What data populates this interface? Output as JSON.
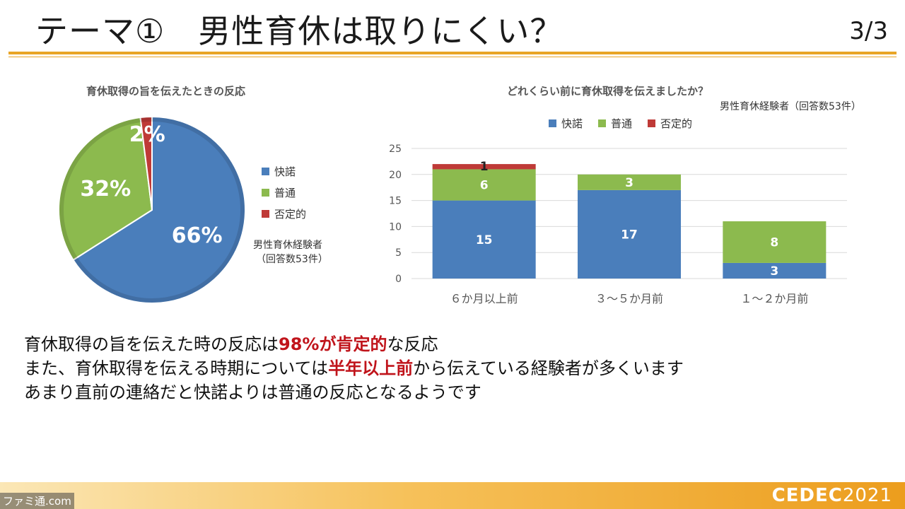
{
  "header": {
    "title": "テーマ①　男性育休は取りにくい？",
    "page": "3/3"
  },
  "colors": {
    "accent": "#e8a526",
    "series_kaidaku": "#4a7ebb",
    "series_futsu": "#8cba4e",
    "series_hitei": "#bf3a37"
  },
  "chart_data": [
    {
      "type": "pie",
      "title": "育休取得の旨を伝えたときの反応",
      "note_line1": "男性育休経験者",
      "note_line2": "（回答数53件）",
      "slices": [
        {
          "name": "快諾",
          "value": 66,
          "label": "66%"
        },
        {
          "name": "普通",
          "value": 32,
          "label": "32%"
        },
        {
          "name": "否定的",
          "value": 2,
          "label": "2%"
        }
      ],
      "legend": [
        "快諾",
        "普通",
        "否定的"
      ]
    },
    {
      "type": "bar",
      "stacked": true,
      "title": "どれくらい前に育休取得を伝えましたか？",
      "note": "男性育休経験者（回答数53件）",
      "categories": [
        "６か月以上前",
        "３～５か月前",
        "１～２か月前"
      ],
      "series": [
        {
          "name": "快諾",
          "values": [
            15,
            17,
            3
          ]
        },
        {
          "name": "普通",
          "values": [
            6,
            3,
            8
          ]
        },
        {
          "name": "否定的",
          "values": [
            1,
            0,
            0
          ]
        }
      ],
      "ylim": [
        0,
        25
      ],
      "yticks": [
        "0",
        "5",
        "10",
        "15",
        "20",
        "25"
      ],
      "grid": true,
      "legend_position": "top"
    }
  ],
  "summary": {
    "line1_a": "育休取得の旨を伝えた時の反応は",
    "line1_b": "98%が肯定的",
    "line1_c": "な反応",
    "line2_a": "また、育休取得を伝える時期については",
    "line2_b": "半年以上前",
    "line2_c": "から伝えている経験者が多くいます",
    "line3": "あまり直前の連絡だと快諾よりは普通の反応となるようです"
  },
  "footer": {
    "logo_text": "CEDEC",
    "logo_year": "2021",
    "watermark": "ファミ通.com"
  }
}
